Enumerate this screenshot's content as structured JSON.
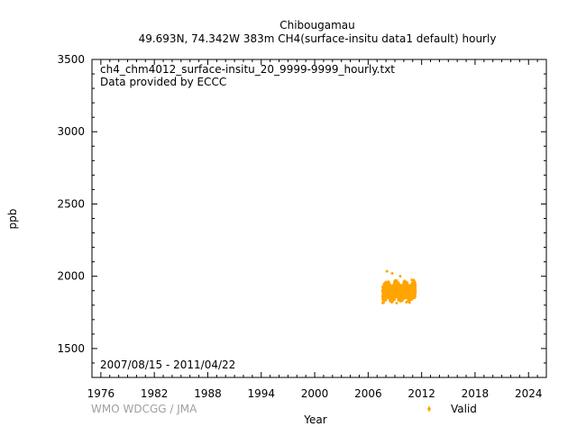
{
  "chart_data": {
    "type": "scatter",
    "title": "Chibougamau",
    "subtitle": "49.693N, 74.342W 383m    CH4(surface-insitu data1 default) hourly",
    "xlabel": "Year",
    "ylabel": "ppb",
    "xlim": [
      1975,
      2026
    ],
    "ylim": [
      1300,
      3500
    ],
    "x_ticks": [
      1976,
      1982,
      1988,
      1994,
      2000,
      2006,
      2012,
      2018,
      2024
    ],
    "y_ticks": [
      1500,
      2000,
      2500,
      3000,
      3500
    ],
    "annotations": {
      "file": "ch4_chm4012_surface-insitu_20_9999-9999_hourly.txt",
      "provider": "Data provided by ECCC",
      "period": "2007/08/15 - 2011/04/22"
    },
    "credit": "WMO WDCGG / JMA",
    "legend": {
      "placement": "bottom-right"
    },
    "grid": false,
    "series": [
      {
        "name": "Valid",
        "color": "#FFA500",
        "x_start": 2007.62,
        "x_end": 2011.31,
        "baseline_range": [
          1830,
          1960
        ],
        "peak_points": [
          {
            "x": 2008.1,
            "y": 2035
          },
          {
            "x": 2008.7,
            "y": 2020
          },
          {
            "x": 2009.6,
            "y": 2000
          },
          {
            "x": 2010.9,
            "y": 1975
          }
        ],
        "low_points": [
          {
            "x": 2008.0,
            "y": 1835
          },
          {
            "x": 2009.2,
            "y": 1815
          },
          {
            "x": 2010.3,
            "y": 1820
          }
        ]
      }
    ]
  }
}
